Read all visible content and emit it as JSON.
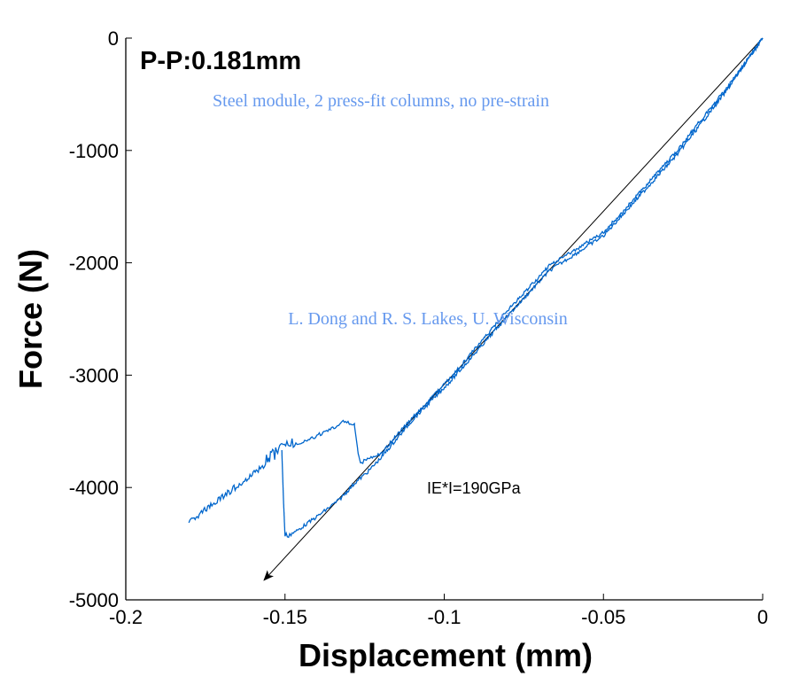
{
  "chart_data": {
    "type": "line",
    "title": "P-P:0.181mm",
    "xlabel": "Displacement (mm)",
    "ylabel": "Force (N)",
    "xlim": [
      -0.2,
      0
    ],
    "ylim": [
      -5000,
      0
    ],
    "xticks": [
      "-0.2",
      "-0.15",
      "-0.1",
      "-0.05",
      "0"
    ],
    "xtick_values": [
      -0.2,
      -0.15,
      -0.1,
      -0.05,
      0
    ],
    "yticks": [
      "0",
      "-1000",
      "-2000",
      "-3000",
      "-4000",
      "-5000"
    ],
    "ytick_values": [
      0,
      -1000,
      -2000,
      -3000,
      -4000,
      -5000
    ],
    "grid": false,
    "series": [
      {
        "name": "loading",
        "color": "#0066cc",
        "x": [
          0,
          -0.005,
          -0.0114,
          -0.02,
          -0.0267,
          -0.04,
          -0.05,
          -0.067,
          -0.08,
          -0.0976,
          -0.11,
          -0.12,
          -0.1263,
          -0.127,
          -0.1282,
          -0.131,
          -0.135,
          -0.14,
          -0.145,
          -0.151,
          -0.16,
          -0.17,
          -0.1802
        ],
        "y": [
          0,
          -200,
          -450,
          -750,
          -1000,
          -1420,
          -1730,
          -2027,
          -2420,
          -3013,
          -3380,
          -3700,
          -3780,
          -3700,
          -3446,
          -3407,
          -3470,
          -3540,
          -3600,
          -3667,
          -3880,
          -4090,
          -4314
        ]
      },
      {
        "name": "unloading",
        "color": "#0066cc",
        "x": [
          -0.151,
          -0.1505,
          -0.15,
          -0.147,
          -0.14,
          -0.133,
          -0.128,
          -0.124,
          -0.12,
          -0.11,
          -0.0976,
          -0.08,
          -0.067,
          -0.05,
          -0.0267,
          -0.0114,
          0
        ],
        "y": [
          -3667,
          -4100,
          -4432,
          -4400,
          -4260,
          -4110,
          -3959,
          -3860,
          -3740,
          -3400,
          -3040,
          -2470,
          -2070,
          -1760,
          -1030,
          -470,
          0
        ]
      }
    ],
    "fit_line": {
      "label": "IE*I=190GPa",
      "color": "#000000",
      "x": [
        0,
        -0.1566
      ],
      "y": [
        0,
        -4826
      ]
    },
    "annotations": [
      "Steel module, 2 press-fit columns, no pre-strain",
      "L. Dong and R. S. Lakes, U. Wisconsin"
    ],
    "annotation_color": "#6699ee"
  }
}
